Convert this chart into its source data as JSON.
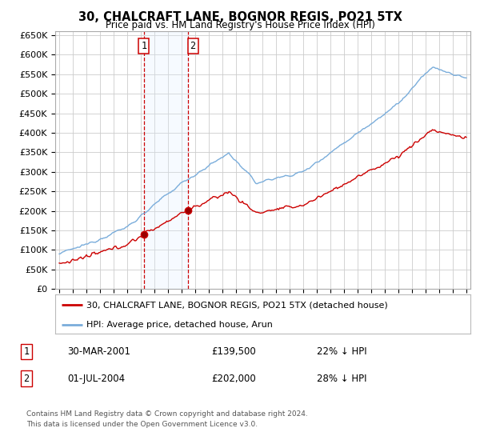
{
  "title": "30, CHALCRAFT LANE, BOGNOR REGIS, PO21 5TX",
  "subtitle": "Price paid vs. HM Land Registry's House Price Index (HPI)",
  "legend_line1": "30, CHALCRAFT LANE, BOGNOR REGIS, PO21 5TX (detached house)",
  "legend_line2": "HPI: Average price, detached house, Arun",
  "annotation1_label": "1",
  "annotation1_date": "30-MAR-2001",
  "annotation1_price": "£139,500",
  "annotation1_hpi": "22% ↓ HPI",
  "annotation2_label": "2",
  "annotation2_date": "01-JUL-2004",
  "annotation2_price": "£202,000",
  "annotation2_hpi": "28% ↓ HPI",
  "footnote1": "Contains HM Land Registry data © Crown copyright and database right 2024.",
  "footnote2": "This data is licensed under the Open Government Licence v3.0.",
  "sale1_date_num": 2001.24,
  "sale2_date_num": 2004.5,
  "sale1_price": 139500,
  "sale2_price": 202000,
  "red_line_color": "#cc0000",
  "blue_line_color": "#7aaddb",
  "shading_color": "#ddeeff",
  "grid_color": "#cccccc",
  "dashed_line_color": "#cc0000",
  "background_color": "#ffffff",
  "ylim": [
    0,
    660000
  ],
  "yticks": [
    0,
    50000,
    100000,
    150000,
    200000,
    250000,
    300000,
    350000,
    400000,
    450000,
    500000,
    550000,
    600000,
    650000
  ],
  "xlim_start": 1994.7,
  "xlim_end": 2025.3
}
